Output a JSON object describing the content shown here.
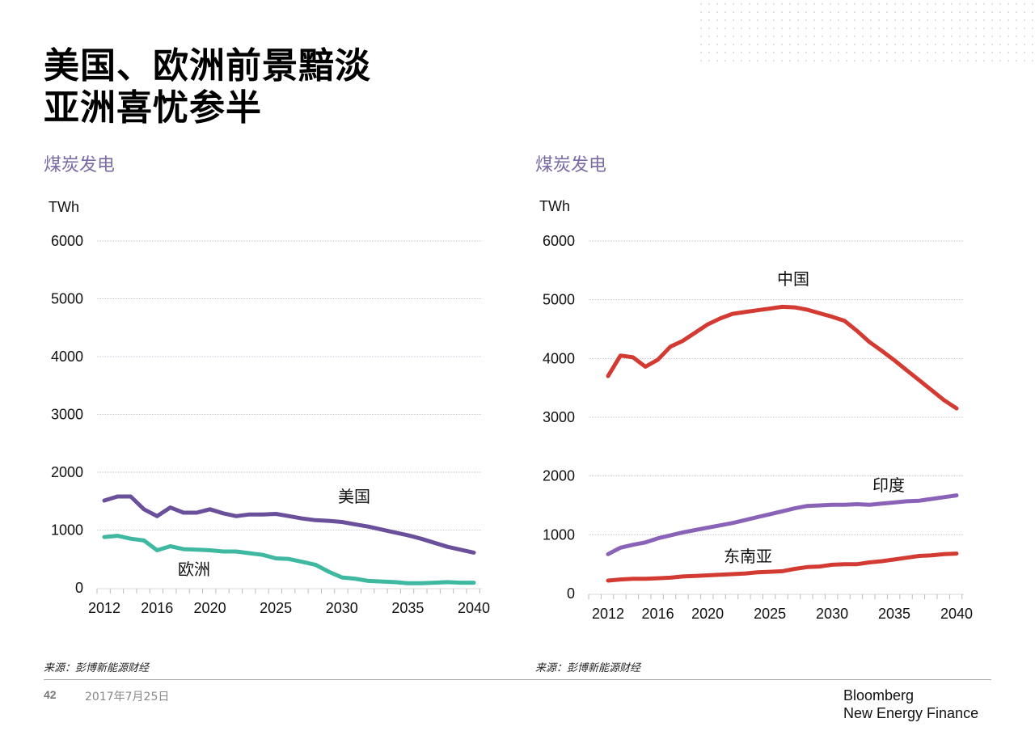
{
  "title": {
    "line1": "美国、欧洲前景黯淡",
    "line2": "亚洲喜忧参半"
  },
  "chart_data": [
    {
      "type": "line",
      "title": "煤炭发电",
      "ylabel": "TWh",
      "xlabel": "",
      "ylim": [
        0,
        6000
      ],
      "yticks": [
        0,
        1000,
        2000,
        3000,
        4000,
        5000,
        6000
      ],
      "xlim": [
        2012,
        2040
      ],
      "xtick_labels": [
        "2012",
        "2016",
        "2020",
        "2025",
        "2030",
        "2035",
        "2040"
      ],
      "grid": true,
      "x": [
        2012,
        2013,
        2014,
        2015,
        2016,
        2017,
        2018,
        2019,
        2020,
        2021,
        2022,
        2023,
        2024,
        2025,
        2026,
        2027,
        2028,
        2029,
        2030,
        2031,
        2032,
        2033,
        2034,
        2035,
        2036,
        2037,
        2038,
        2039,
        2040
      ],
      "series": [
        {
          "name": "美国",
          "color": "#6a4f9a",
          "values": [
            1510,
            1580,
            1580,
            1360,
            1240,
            1390,
            1300,
            1300,
            1360,
            1290,
            1240,
            1270,
            1270,
            1280,
            1240,
            1200,
            1170,
            1160,
            1140,
            1100,
            1060,
            1010,
            960,
            910,
            850,
            780,
            710,
            660,
            610
          ]
        },
        {
          "name": "欧洲",
          "color": "#3eb8a0",
          "values": [
            880,
            900,
            850,
            820,
            650,
            720,
            670,
            660,
            650,
            630,
            630,
            600,
            570,
            510,
            500,
            450,
            400,
            280,
            180,
            160,
            120,
            110,
            100,
            80,
            80,
            90,
            100,
            90,
            90
          ]
        }
      ],
      "annotations": [
        {
          "text": "美国",
          "series": "美国"
        },
        {
          "text": "欧洲",
          "series": "欧洲"
        }
      ],
      "source": "来源：彭博新能源财经"
    },
    {
      "type": "line",
      "title": "煤炭发电",
      "ylabel": "TWh",
      "xlabel": "",
      "ylim": [
        0,
        6000
      ],
      "yticks": [
        0,
        1000,
        2000,
        3000,
        4000,
        5000,
        6000
      ],
      "xlim": [
        2012,
        2040
      ],
      "xtick_labels": [
        "2012",
        "2016",
        "2020",
        "2025",
        "2030",
        "2035",
        "2040"
      ],
      "grid": true,
      "x": [
        2012,
        2013,
        2014,
        2015,
        2016,
        2017,
        2018,
        2019,
        2020,
        2021,
        2022,
        2023,
        2024,
        2025,
        2026,
        2027,
        2028,
        2029,
        2030,
        2031,
        2032,
        2033,
        2034,
        2035,
        2036,
        2037,
        2038,
        2039,
        2040
      ],
      "series": [
        {
          "name": "中国",
          "color": "#d23a32",
          "values": [
            3700,
            4050,
            4020,
            3860,
            3980,
            4200,
            4300,
            4440,
            4580,
            4680,
            4760,
            4790,
            4820,
            4850,
            4880,
            4870,
            4830,
            4770,
            4710,
            4640,
            4470,
            4280,
            4130,
            3970,
            3800,
            3630,
            3460,
            3290,
            3150
          ]
        },
        {
          "name": "印度",
          "color": "#8a63b8",
          "values": [
            670,
            780,
            830,
            870,
            940,
            990,
            1040,
            1080,
            1120,
            1160,
            1200,
            1250,
            1300,
            1350,
            1400,
            1450,
            1490,
            1500,
            1510,
            1510,
            1520,
            1510,
            1530,
            1550,
            1570,
            1580,
            1610,
            1640,
            1670
          ]
        },
        {
          "name": "东南亚",
          "color": "#d23a32",
          "values": [
            220,
            240,
            250,
            250,
            260,
            270,
            290,
            300,
            310,
            320,
            330,
            340,
            360,
            370,
            380,
            420,
            450,
            460,
            490,
            500,
            500,
            530,
            550,
            580,
            610,
            640,
            650,
            670,
            680
          ]
        }
      ],
      "annotations": [
        {
          "text": "中国",
          "series": "中国"
        },
        {
          "text": "印度",
          "series": "印度"
        },
        {
          "text": "东南亚",
          "series": "东南亚"
        }
      ],
      "source": "来源：彭博新能源财经"
    }
  ],
  "footer": {
    "page_number": "42",
    "date": "2017年7月25日",
    "brand_line1": "Bloomberg",
    "brand_line2": "New Energy Finance"
  }
}
